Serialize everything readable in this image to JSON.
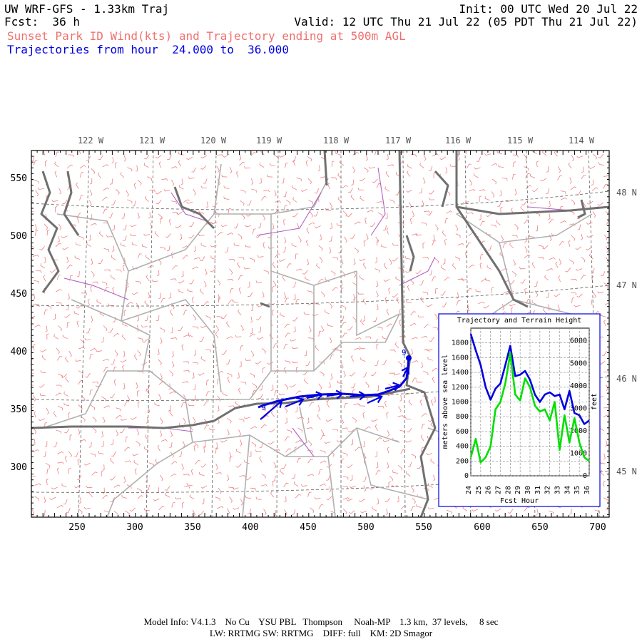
{
  "header": {
    "title": "UW WRF-GFS - 1.33km Traj",
    "init": "Init: 00 UTC Wed 20 Jul 22",
    "fcst": "Fcst:  36 h",
    "valid": "Valid: 12 UTC Thu 21 Jul 22 (05 PDT Thu 21 Jul 22)",
    "subtitle": "Sunset Park ID Wind(kts) and Trajectory ending at 500m AGL",
    "traj_range": "Trajectories from hour  24.000 to  36.000"
  },
  "map": {
    "lon_labels": [
      "122 W",
      "121 W",
      "120 W",
      "119 W",
      "118 W",
      "117 W",
      "116 W",
      "115 W",
      "114 W"
    ],
    "lat_labels": [
      "48 N",
      "47 N",
      "46 N",
      "45 N"
    ],
    "x_ticks": [
      "250",
      "300",
      "350",
      "400",
      "450",
      "500",
      "550",
      "600",
      "650",
      "700"
    ],
    "y_ticks": [
      "550",
      "500",
      "450",
      "400",
      "350",
      "300"
    ],
    "traj_start_marker": "9",
    "traj_end_marker": "9",
    "colors": {
      "wind_barbs": "#f08080",
      "state_borders": "#707070",
      "county_lines": "#b0b0b0",
      "rivers": "#b060c0",
      "trajectory": "#0000e0"
    }
  },
  "inset": {
    "title": "Trajectory and Terrain Height",
    "ylabel_left": "meters above sea level",
    "ylabel_right": "feet",
    "xlabel": "Fcst Hour",
    "left_ticks": [
      "0",
      "200",
      "400",
      "600",
      "800",
      "1000",
      "1200",
      "1400",
      "1600",
      "1800"
    ],
    "right_ticks": [
      "0",
      "1000",
      "2000",
      "3000",
      "4000",
      "5000",
      "6000"
    ],
    "x_ticks": [
      "24",
      "25",
      "26",
      "27",
      "28",
      "29",
      "30",
      "31",
      "32",
      "33",
      "34",
      "35",
      "36"
    ],
    "chart_data": {
      "type": "line",
      "x": [
        24,
        24.5,
        25,
        25.5,
        26,
        26.5,
        27,
        27.5,
        28,
        28.5,
        29,
        29.5,
        30,
        30.5,
        31,
        31.5,
        32,
        32.5,
        33,
        33.5,
        34,
        34.5,
        35,
        35.5,
        36
      ],
      "series": [
        {
          "values": [
            1920,
            1700,
            1500,
            1200,
            1030,
            1180,
            1250,
            1500,
            1760,
            1350,
            1370,
            1420,
            1300,
            1100,
            1000,
            1100,
            1130,
            1080,
            1100,
            900,
            1150,
            850,
            820,
            700,
            750
          ],
          "color": "#0000e0"
        },
        {
          "values": [
            250,
            500,
            180,
            250,
            400,
            900,
            1000,
            1250,
            1660,
            1100,
            1020,
            1320,
            1200,
            950,
            870,
            900,
            750,
            1000,
            350,
            820,
            450,
            780,
            450,
            250,
            200
          ],
          "color": "#00e000"
        }
      ],
      "xlim": [
        24,
        36
      ],
      "ylim": [
        0,
        2000
      ]
    }
  },
  "footer": {
    "line1": "Model Info: V4.1.3    No Cu    YSU PBL   Thompson     Noah-MP    1.3 km,  37 levels,     8 sec",
    "line2": "LW: RRTMG SW: RRTMG    DIFF: full    KM: 2D Smagor"
  }
}
